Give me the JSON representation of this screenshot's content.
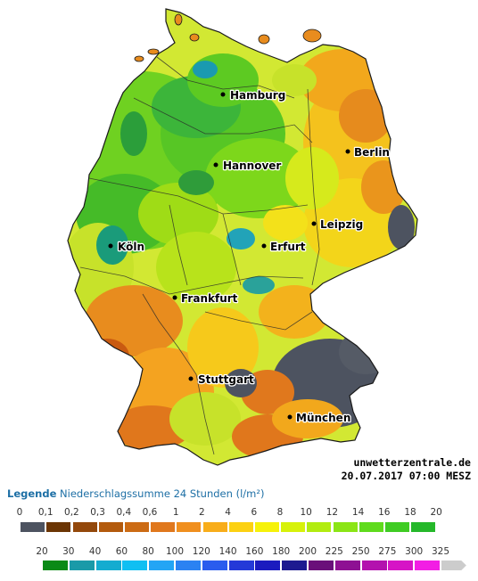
{
  "map": {
    "cities": [
      {
        "id": "hamburg",
        "name": "Hamburg"
      },
      {
        "id": "berlin",
        "name": "Berlin"
      },
      {
        "id": "hannover",
        "name": "Hannover"
      },
      {
        "id": "leipzig",
        "name": "Leipzig"
      },
      {
        "id": "koeln",
        "name": "Köln"
      },
      {
        "id": "erfurt",
        "name": "Erfurt"
      },
      {
        "id": "frankfurt",
        "name": "Frankfurt"
      },
      {
        "id": "stuttgart",
        "name": "Stuttgart"
      },
      {
        "id": "muenchen",
        "name": "München"
      }
    ]
  },
  "source": {
    "site": "unwetterzentrale.de",
    "timestamp": "20.07.2017 07:00 MESZ"
  },
  "legend": {
    "title": "Legende",
    "subtitle": "Niederschlagssumme 24 Stunden",
    "unit": "(l/m²)",
    "row1": {
      "ticks": [
        "0",
        "0,1",
        "0,2",
        "0,3",
        "0,4",
        "0,6",
        "1",
        "2",
        "4",
        "6",
        "8",
        "10",
        "12",
        "14",
        "16",
        "18",
        "20"
      ],
      "colors": [
        "#4d5360",
        "#6b3504",
        "#93480b",
        "#b35a0d",
        "#cc6b14",
        "#e0781d",
        "#f08f1e",
        "#f8ad1a",
        "#fcd112",
        "#f6f20a",
        "#d7f20a",
        "#b2ec10",
        "#8be515",
        "#5fdb1d",
        "#3fcc23",
        "#25b82a"
      ]
    },
    "row2": {
      "ticks": [
        "20",
        "30",
        "40",
        "60",
        "80",
        "100",
        "120",
        "140",
        "160",
        "180",
        "200",
        "225",
        "250",
        "275",
        "300",
        "325"
      ],
      "colors": [
        "#0a8a16",
        "#1a9aa8",
        "#14acd0",
        "#10bff2",
        "#23a5f5",
        "#2b82f2",
        "#2a5cee",
        "#2439d8",
        "#1b1bbf",
        "#1d1a90",
        "#6a0f7a",
        "#8e1193",
        "#b312ae",
        "#d614c6",
        "#f21ee4",
        "#cccccc"
      ]
    }
  }
}
